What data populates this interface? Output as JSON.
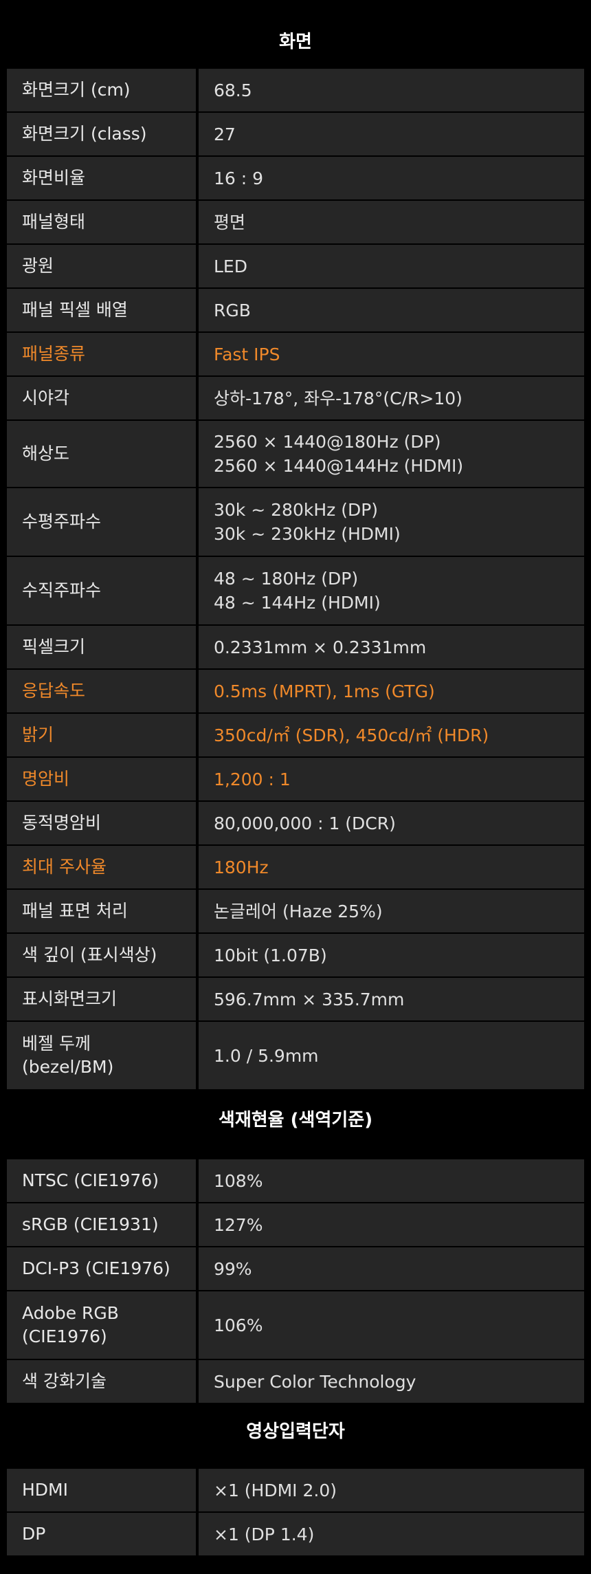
{
  "accent_color": "#f0892a",
  "sections": [
    {
      "title": "화면",
      "rows": [
        {
          "label": "화면크기 (cm)",
          "value": "68.5"
        },
        {
          "label": "화면크기 (class)",
          "value": "27"
        },
        {
          "label": "화면비율",
          "value": "16 : 9"
        },
        {
          "label": "패널형태",
          "value": "평면"
        },
        {
          "label": "광원",
          "value": "LED"
        },
        {
          "label": "패널 픽셀 배열",
          "value": "RGB"
        },
        {
          "label": "패널종류",
          "value": "Fast IPS",
          "highlight": true
        },
        {
          "label": "시야각",
          "value": "상하-178°, 좌우-178°(C/R>10)"
        },
        {
          "label": "해상도",
          "value": "2560 × 1440@180Hz (DP)",
          "value2": "2560 × 1440@144Hz (HDMI)"
        },
        {
          "label": "수평주파수",
          "value": "30k ~ 280kHz (DP)",
          "value2": "30k ~ 230kHz (HDMI)"
        },
        {
          "label": "수직주파수",
          "value": "48 ~ 180Hz (DP)",
          "value2": "48 ~ 144Hz (HDMI)"
        },
        {
          "label": "픽셀크기",
          "value": "0.2331mm × 0.2331mm"
        },
        {
          "label": "응답속도",
          "value": "0.5ms (MPRT), 1ms (GTG)",
          "highlight": true
        },
        {
          "label": "밝기",
          "value": "350cd/㎡ (SDR), 450cd/㎡ (HDR)",
          "highlight": true
        },
        {
          "label": "명암비",
          "value": "1,200 : 1",
          "highlight": true
        },
        {
          "label": "동적명암비",
          "value": "80,000,000 : 1 (DCR)"
        },
        {
          "label": "최대 주사율",
          "value": "180Hz",
          "highlight": true
        },
        {
          "label": "패널 표면 처리",
          "value": "논글레어 (Haze 25%)"
        },
        {
          "label": "색 깊이 (표시색상)",
          "value": "10bit (1.07B)"
        },
        {
          "label": "표시화면크기",
          "value": "596.7mm × 335.7mm"
        },
        {
          "label": "베젤 두께",
          "label2": "(bezel/BM)",
          "value": "1.0 / 5.9mm"
        }
      ]
    },
    {
      "title": "색재현율 (색역기준)",
      "rows": [
        {
          "label": "NTSC (CIE1976)",
          "value": "108%"
        },
        {
          "label": "sRGB (CIE1931)",
          "value": "127%"
        },
        {
          "label": "DCI-P3 (CIE1976)",
          "value": "99%"
        },
        {
          "label": "Adobe RGB",
          "label2": "(CIE1976)",
          "value": "106%"
        },
        {
          "label": "색 강화기술",
          "value": "Super Color Technology"
        }
      ]
    },
    {
      "title": "영상입력단자",
      "rows": [
        {
          "label": "HDMI",
          "value": "×1 (HDMI 2.0)"
        },
        {
          "label": "DP",
          "value": "×1 (DP 1.4)"
        }
      ]
    }
  ]
}
